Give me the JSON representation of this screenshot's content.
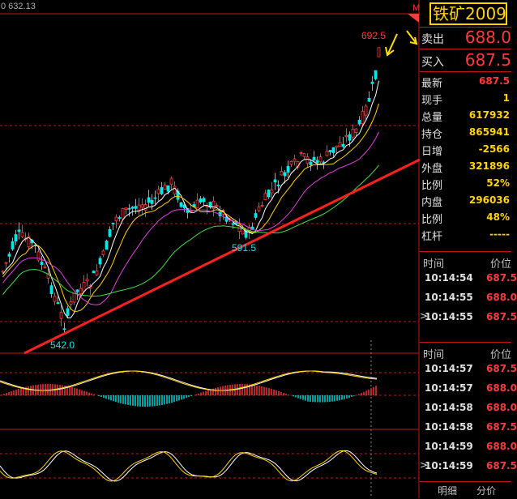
{
  "chart": {
    "top_left_value": "0 632.13",
    "marker_letter": "M",
    "high_label": "692.5",
    "peak_label": "591.5",
    "low_label": "542.0"
  },
  "panel": {
    "title": "铁矿2009",
    "sell_label": "卖出",
    "sell_value": "688.0",
    "buy_label": "买入",
    "buy_value": "687.5",
    "stats": [
      {
        "label": "最新",
        "value": "687.5",
        "color": "#ff3a3a"
      },
      {
        "label": "现手",
        "value": "1",
        "color": "#ffd400"
      },
      {
        "label": "总量",
        "value": "617932",
        "color": "#ffd400"
      },
      {
        "label": "持仓",
        "value": "865941",
        "color": "#ffd400"
      },
      {
        "label": "日增",
        "value": "-2566",
        "color": "#ffd400"
      },
      {
        "label": "外盘",
        "value": "321896",
        "color": "#ffd400"
      },
      {
        "label": "比例",
        "value": "52%",
        "color": "#ffd400"
      },
      {
        "label": "内盘",
        "value": "296036",
        "color": "#ffd400"
      },
      {
        "label": "比例",
        "value": "48%",
        "color": "#ffd400"
      },
      {
        "label": "杠杆",
        "value": "-----",
        "color": "#ffd400"
      }
    ],
    "ticks1_header": {
      "time": "时间",
      "price": "价位"
    },
    "ticks1": [
      {
        "time": "10:14:54",
        "price": "687.5",
        "mark": ""
      },
      {
        "time": "10:14:55",
        "price": "688.0",
        "mark": ""
      },
      {
        "time": "10:14:55",
        "price": "687.5",
        "mark": ">"
      }
    ],
    "ticks2_header": {
      "time": "时间",
      "price": "价位"
    },
    "ticks2": [
      {
        "time": "10:14:57",
        "price": "687.5",
        "mark": ""
      },
      {
        "time": "10:14:57",
        "price": "688.0",
        "mark": ""
      },
      {
        "time": "10:14:58",
        "price": "688.0",
        "mark": ""
      },
      {
        "time": "10:14:58",
        "price": "687.5",
        "mark": ""
      },
      {
        "time": "10:14:59",
        "price": "688.0",
        "mark": ""
      },
      {
        "time": "10:14:59",
        "price": "687.5",
        "mark": ">"
      }
    ],
    "tab_detail": "明细",
    "tab_price": "分价"
  },
  "colors": {
    "up": "#ff3a3a",
    "down": "#00e5e5",
    "accent": "#ffd400",
    "grid": "#c01818"
  }
}
